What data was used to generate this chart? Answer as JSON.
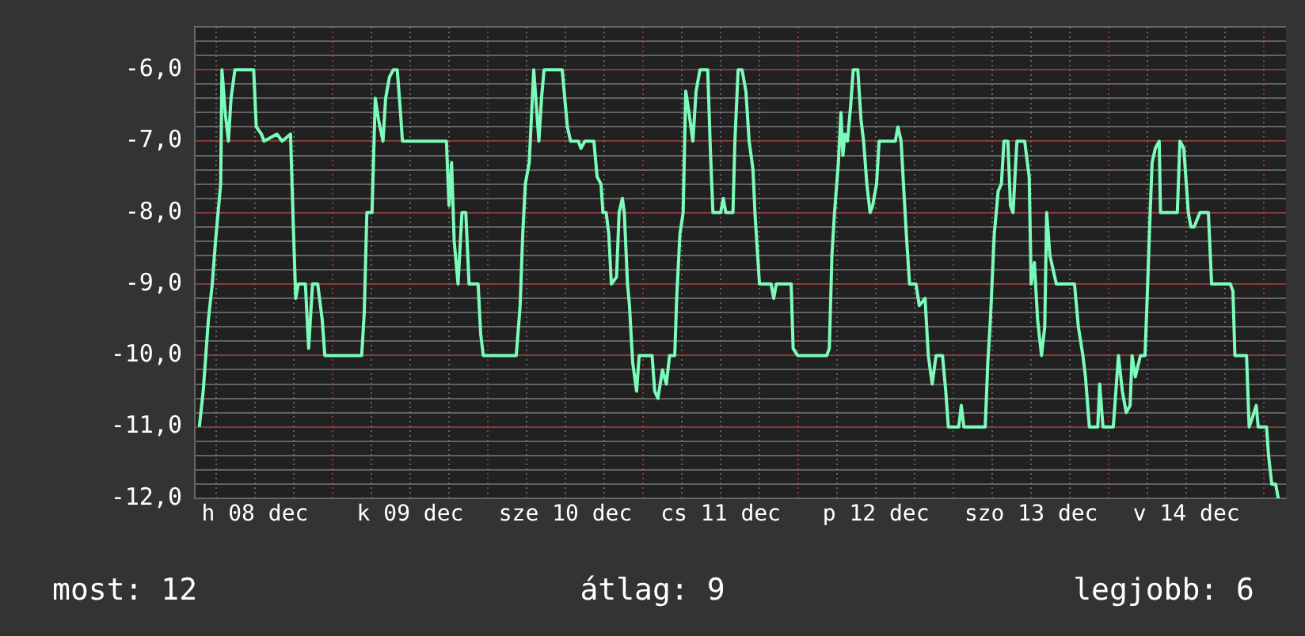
{
  "chart_data": {
    "type": "line",
    "marker": "none",
    "line_style": "solid",
    "grid": true,
    "legend": false,
    "xlim": [
      "--12-08T02:42",
      "--12-15T03:24"
    ],
    "ylim": [
      -12,
      -5.4
    ],
    "xticks": [
      {
        "value": "--12-08T06:00",
        "label": null
      },
      {
        "value": "--12-08T12:00",
        "label": "h 08 dec"
      },
      {
        "value": "--12-08T18:00",
        "label": null
      },
      {
        "value": "--12-09T00:00",
        "label": null
      },
      {
        "value": "--12-09T06:00",
        "label": null
      },
      {
        "value": "--12-09T12:00",
        "label": "k 09 dec"
      },
      {
        "value": "--12-09T18:00",
        "label": null
      },
      {
        "value": "--12-10T00:00",
        "label": null
      },
      {
        "value": "--12-10T06:00",
        "label": null
      },
      {
        "value": "--12-10T12:00",
        "label": "sze 10 dec"
      },
      {
        "value": "--12-10T18:00",
        "label": null
      },
      {
        "value": "--12-11T00:00",
        "label": null
      },
      {
        "value": "--12-11T06:00",
        "label": null
      },
      {
        "value": "--12-11T12:00",
        "label": "cs 11 dec"
      },
      {
        "value": "--12-11T18:00",
        "label": null
      },
      {
        "value": "--12-12T00:00",
        "label": null
      },
      {
        "value": "--12-12T06:00",
        "label": null
      },
      {
        "value": "--12-12T12:00",
        "label": "p 12 dec"
      },
      {
        "value": "--12-12T18:00",
        "label": null
      },
      {
        "value": "--12-13T00:00",
        "label": null
      },
      {
        "value": "--12-13T06:00",
        "label": null
      },
      {
        "value": "--12-13T12:00",
        "label": "szo 13 dec"
      },
      {
        "value": "--12-13T18:00",
        "label": null
      },
      {
        "value": "--12-14T00:00",
        "label": null
      },
      {
        "value": "--12-14T06:00",
        "label": null
      },
      {
        "value": "--12-14T12:00",
        "label": "v 14 dec"
      },
      {
        "value": "--12-14T18:00",
        "label": null
      },
      {
        "value": "--12-15T00:00",
        "label": null
      }
    ],
    "yticks": [
      {
        "value": -12,
        "label": "-12,0"
      },
      {
        "value": -11.8,
        "label": null
      },
      {
        "value": -11.6,
        "label": null
      },
      {
        "value": -11.4,
        "label": null
      },
      {
        "value": -11.2,
        "label": null
      },
      {
        "value": -11,
        "label": "-11,0"
      },
      {
        "value": -10.8,
        "label": null
      },
      {
        "value": -10.6,
        "label": null
      },
      {
        "value": -10.4,
        "label": null
      },
      {
        "value": -10.2,
        "label": null
      },
      {
        "value": -10,
        "label": "-10,0"
      },
      {
        "value": -9.8,
        "label": null
      },
      {
        "value": -9.6,
        "label": null
      },
      {
        "value": -9.4,
        "label": null
      },
      {
        "value": -9.2,
        "label": null
      },
      {
        "value": -9,
        "label": "-9,0"
      },
      {
        "value": -8.8,
        "label": null
      },
      {
        "value": -8.6,
        "label": null
      },
      {
        "value": -8.4,
        "label": null
      },
      {
        "value": -8.2,
        "label": null
      },
      {
        "value": -8,
        "label": "-8,0"
      },
      {
        "value": -7.8,
        "label": null
      },
      {
        "value": -7.6,
        "label": null
      },
      {
        "value": -7.4,
        "label": null
      },
      {
        "value": -7.2,
        "label": null
      },
      {
        "value": -7,
        "label": "-7,0"
      },
      {
        "value": -6.8,
        "label": null
      },
      {
        "value": -6.6,
        "label": null
      },
      {
        "value": -6.4,
        "label": null
      },
      {
        "value": -6.2,
        "label": null
      },
      {
        "value": -6,
        "label": "-6,0"
      },
      {
        "value": -5.8,
        "label": null
      },
      {
        "value": -5.6,
        "label": null
      },
      {
        "value": -5.4,
        "label": null
      }
    ],
    "annotations": [
      "most: 12",
      "átlag: 9",
      "legjobb: 6"
    ],
    "series": [
      {
        "color": "#7dfbba",
        "x": [
          "--12-08T03:24",
          "--12-08T04:00",
          "--12-08T04:24",
          "--12-08T04:48",
          "--12-08T05:24",
          "--12-08T05:54",
          "--12-08T06:18",
          "--12-08T06:42",
          "--12-08T06:54",
          "--12-08T07:24",
          "--12-08T07:54",
          "--12-08T08:18",
          "--12-08T08:54",
          "--12-08T11:48",
          "--12-08T12:12",
          "--12-08T13:00",
          "--12-08T13:24",
          "--12-08T15:24",
          "--12-08T16:12",
          "--12-08T17:30",
          "--12-08T17:54",
          "--12-08T18:18",
          "--12-08T18:42",
          "--12-08T19:48",
          "--12-08T20:18",
          "--12-08T20:54",
          "--12-08T21:42",
          "--12-08T22:24",
          "--12-08T22:48",
          "--12-09T04:30",
          "--12-09T04:54",
          "--12-09T05:18",
          "--12-09T06:06",
          "--12-09T06:36",
          "--12-09T07:06",
          "--12-09T07:48",
          "--12-09T08:12",
          "--12-09T08:48",
          "--12-09T09:24",
          "--12-09T10:00",
          "--12-09T10:30",
          "--12-09T10:48",
          "--12-09T17:36",
          "--12-09T18:00",
          "--12-09T18:24",
          "--12-09T18:48",
          "--12-09T19:24",
          "--12-09T20:00",
          "--12-09T20:36",
          "--12-09T21:06",
          "--12-09T22:30",
          "--12-09T22:54",
          "--12-09T23:18",
          "--12-10T04:24",
          "--12-10T05:00",
          "--12-10T05:24",
          "--12-10T05:48",
          "--12-10T06:24",
          "--12-10T07:06",
          "--12-10T07:54",
          "--12-10T08:18",
          "--12-10T08:42",
          "--12-10T11:30",
          "--12-10T12:00",
          "--12-10T12:18",
          "--12-10T12:48",
          "--12-10T14:00",
          "--12-10T14:24",
          "--12-10T15:00",
          "--12-10T16:24",
          "--12-10T16:54",
          "--12-10T17:30",
          "--12-10T17:48",
          "--12-10T18:18",
          "--12-10T18:42",
          "--12-10T19:06",
          "--12-10T19:54",
          "--12-10T20:18",
          "--12-10T20:48",
          "--12-10T21:06",
          "--12-10T21:36",
          "--12-10T21:54",
          "--12-10T22:24",
          "--12-10T23:00",
          "--12-10T23:24",
          "--12-11T01:24",
          "--12-11T01:48",
          "--12-11T02:18",
          "--12-11T03:00",
          "--12-11T03:36",
          "--12-11T04:06",
          "--12-11T04:54",
          "--12-11T05:12",
          "--12-11T05:42",
          "--12-11T06:12",
          "--12-11T06:36",
          "--12-11T07:06",
          "--12-11T07:42",
          "--12-11T08:12",
          "--12-11T08:48",
          "--12-11T10:00",
          "--12-11T10:24",
          "--12-11T10:48",
          "--12-11T12:00",
          "--12-11T12:24",
          "--12-11T12:48",
          "--12-11T13:54",
          "--12-11T14:12",
          "--12-11T14:42",
          "--12-11T15:18",
          "--12-11T15:54",
          "--12-11T16:24",
          "--12-11T17:00",
          "--12-11T17:18",
          "--12-11T18:00",
          "--12-11T19:48",
          "--12-11T20:12",
          "--12-11T20:36",
          "--12-11T22:54",
          "--12-11T23:12",
          "--12-11T23:54",
          "--12-12T04:24",
          "--12-12T04:48",
          "--12-12T05:12",
          "--12-12T05:36",
          "--12-12T06:12",
          "--12-12T06:36",
          "--12-12T06:54",
          "--12-12T07:12",
          "--12-12T07:36",
          "--12-12T08:06",
          "--12-12T08:30",
          "--12-12T09:12",
          "--12-12T09:42",
          "--12-12T10:06",
          "--12-12T10:36",
          "--12-12T11:06",
          "--12-12T11:30",
          "--12-12T12:06",
          "--12-12T12:30",
          "--12-12T15:00",
          "--12-12T15:24",
          "--12-12T15:54",
          "--12-12T16:12",
          "--12-12T16:42",
          "--12-12T17:12",
          "--12-12T18:12",
          "--12-12T18:42",
          "--12-12T19:36",
          "--12-12T20:06",
          "--12-12T20:42",
          "--12-12T21:18",
          "--12-12T22:18",
          "--12-12T22:48",
          "--12-12T23:12",
          "--12-13T00:48",
          "--12-13T01:12",
          "--12-13T01:36",
          "--12-13T04:54",
          "--12-13T05:18",
          "--12-13T05:42",
          "--12-13T06:18",
          "--12-13T06:54",
          "--12-13T07:24",
          "--12-13T07:48",
          "--12-13T08:24",
          "--12-13T08:48",
          "--12-13T09:12",
          "--12-13T09:48",
          "--12-13T11:00",
          "--12-13T11:42",
          "--12-13T12:00",
          "--12-13T12:30",
          "--12-13T13:00",
          "--12-13T13:36",
          "--12-13T14:06",
          "--12-13T14:24",
          "--12-13T14:54",
          "--12-13T15:54",
          "--12-13T18:42",
          "--12-13T19:18",
          "--12-13T20:00",
          "--12-13T20:24",
          "--12-13T21:00",
          "--12-13T22:18",
          "--12-13T22:36",
          "--12-13T23:06",
          "--12-14T00:42",
          "--12-14T01:06",
          "--12-14T01:30",
          "--12-14T02:06",
          "--12-14T02:42",
          "--12-14T03:18",
          "--12-14T03:36",
          "--12-14T04:06",
          "--12-14T04:54",
          "--12-14T05:36",
          "--12-14T05:54",
          "--12-14T06:24",
          "--12-14T06:42",
          "--12-14T07:12",
          "--12-14T07:48",
          "--12-14T08:00",
          "--12-14T10:36",
          "--12-14T11:00",
          "--12-14T11:36",
          "--12-14T12:18",
          "--12-14T12:42",
          "--12-14T13:12",
          "--12-14T14:06",
          "--12-14T15:24",
          "--12-14T15:54",
          "--12-14T18:48",
          "--12-14T19:12",
          "--12-14T19:30",
          "--12-14T21:18",
          "--12-14T21:42",
          "--12-14T22:06",
          "--12-14T22:48",
          "--12-14T23:06",
          "--12-15T00:24",
          "--12-15T00:42",
          "--12-15T01:12",
          "--12-15T01:48",
          "--12-15T02:12"
        ],
        "values": [
          -11,
          -10.5,
          -10,
          -9.5,
          -9,
          -8.4,
          -8,
          -7.6,
          -6,
          -6.6,
          -7,
          -6.4,
          -6,
          -6,
          -6.8,
          -6.9,
          -7,
          -6.9,
          -7,
          -6.9,
          -8.1,
          -9.2,
          -9,
          -9,
          -9.9,
          -9,
          -9,
          -9.5,
          -10,
          -10,
          -9.4,
          -8,
          -8,
          -6.4,
          -6.7,
          -7,
          -6.4,
          -6.1,
          -6,
          -6,
          -6.6,
          -7,
          -7,
          -7.9,
          -7.3,
          -8.4,
          -9,
          -8,
          -8,
          -9,
          -9,
          -9.7,
          -10,
          -10,
          -9.3,
          -8.3,
          -7.6,
          -7.3,
          -6,
          -7,
          -6.4,
          -6,
          -6,
          -6.5,
          -6.8,
          -7,
          -7,
          -7.1,
          -7,
          -7,
          -7.5,
          -7.6,
          -8,
          -8,
          -8.3,
          -9,
          -8.9,
          -8,
          -7.8,
          -8,
          -9,
          -9.3,
          -10.1,
          -10.5,
          -10,
          -10,
          -10.5,
          -10.6,
          -10.2,
          -10.4,
          -10,
          -10,
          -9.2,
          -8.3,
          -8,
          -6.3,
          -6.6,
          -7,
          -6.3,
          -6,
          -6,
          -7.1,
          -8,
          -8,
          -7.8,
          -8,
          -8,
          -7,
          -6,
          -6,
          -6.3,
          -7,
          -7.4,
          -8,
          -9,
          -9,
          -9.2,
          -9,
          -9,
          -9.9,
          -10,
          -10,
          -9.9,
          -8.6,
          -8,
          -7.3,
          -6.6,
          -7.2,
          -6.9,
          -7,
          -6.5,
          -6,
          -6,
          -6.7,
          -7,
          -7.6,
          -8,
          -7.9,
          -7.6,
          -7,
          -7,
          -6.8,
          -7,
          -7.5,
          -8.3,
          -9,
          -9,
          -9.3,
          -9.2,
          -10,
          -10.4,
          -10,
          -10,
          -10.5,
          -11,
          -11,
          -10.7,
          -11,
          -11,
          -10.1,
          -9.5,
          -8.3,
          -7.7,
          -7.6,
          -7,
          -7,
          -7.9,
          -8,
          -7,
          -7,
          -7.5,
          -9,
          -8.7,
          -9.5,
          -10,
          -9.6,
          -8,
          -8.6,
          -9,
          -9,
          -9.6,
          -10,
          -10.3,
          -11,
          -11,
          -10.4,
          -11,
          -11,
          -10.5,
          -10,
          -10.5,
          -10.8,
          -10.7,
          -10,
          -10.3,
          -10,
          -10,
          -9.3,
          -8,
          -7.3,
          -7.1,
          -7,
          -8,
          -8,
          -7,
          -7.1,
          -8,
          -8.2,
          -8.2,
          -8,
          -8,
          -9,
          -9,
          -9.1,
          -10,
          -10,
          -11,
          -10.9,
          -10.7,
          -11,
          -11,
          -11.4,
          -11.8,
          -11.8,
          -12
        ]
      }
    ]
  }
}
